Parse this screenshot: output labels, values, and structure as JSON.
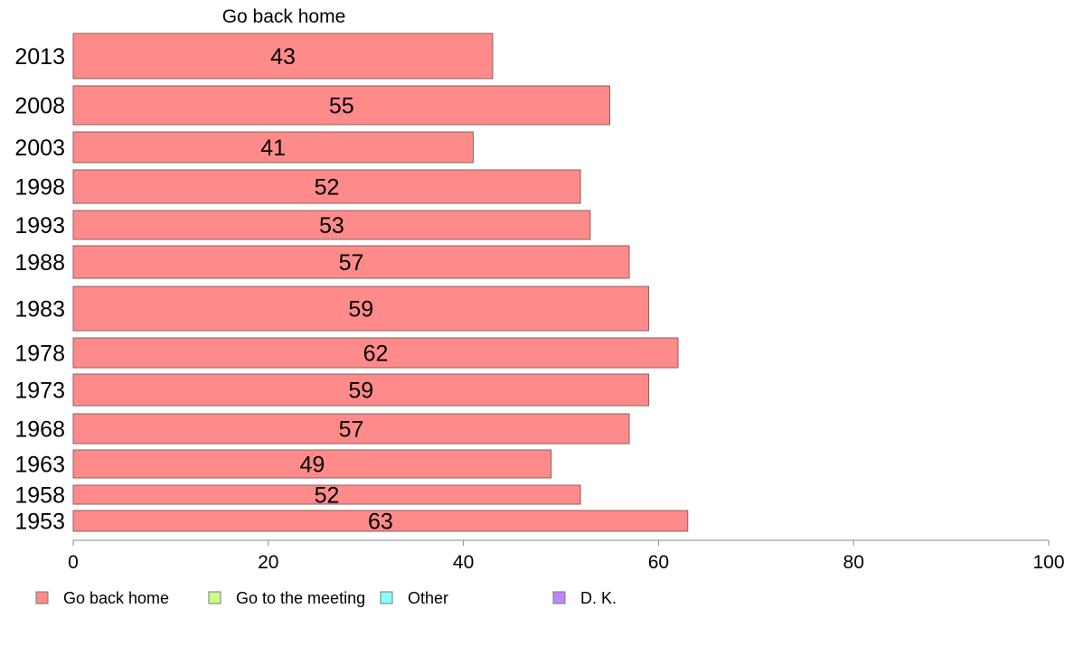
{
  "chart_data": {
    "type": "bar",
    "orientation": "horizontal",
    "panel_title": "Go back home",
    "categories": [
      "2013",
      "2008",
      "2003",
      "1998",
      "1993",
      "1988",
      "1983",
      "1978",
      "1973",
      "1968",
      "1963",
      "1958",
      "1953"
    ],
    "series": [
      {
        "name": "Go back home",
        "values": [
          43,
          55,
          41,
          52,
          53,
          57,
          59,
          62,
          59,
          57,
          49,
          52,
          63
        ],
        "color": "#ff8a8a"
      }
    ],
    "value_labels": [
      "43",
      "55",
      "41",
      "52",
      "53",
      "57",
      "59",
      "62",
      "59",
      "57",
      "49",
      "52",
      "63"
    ],
    "xlim": [
      0,
      100
    ],
    "x_ticks": [
      "0",
      "20",
      "40",
      "60",
      "80",
      "100"
    ],
    "grid": false,
    "legend": {
      "placement": "bottom",
      "entries": [
        {
          "label": "Go back home",
          "color": "#ff8a8a"
        },
        {
          "label": "Go to the meeting",
          "color": "#ccff88"
        },
        {
          "label": "Other",
          "color": "#88ffff"
        },
        {
          "label": "D. K.",
          "color": "#bb88ff"
        }
      ]
    }
  }
}
